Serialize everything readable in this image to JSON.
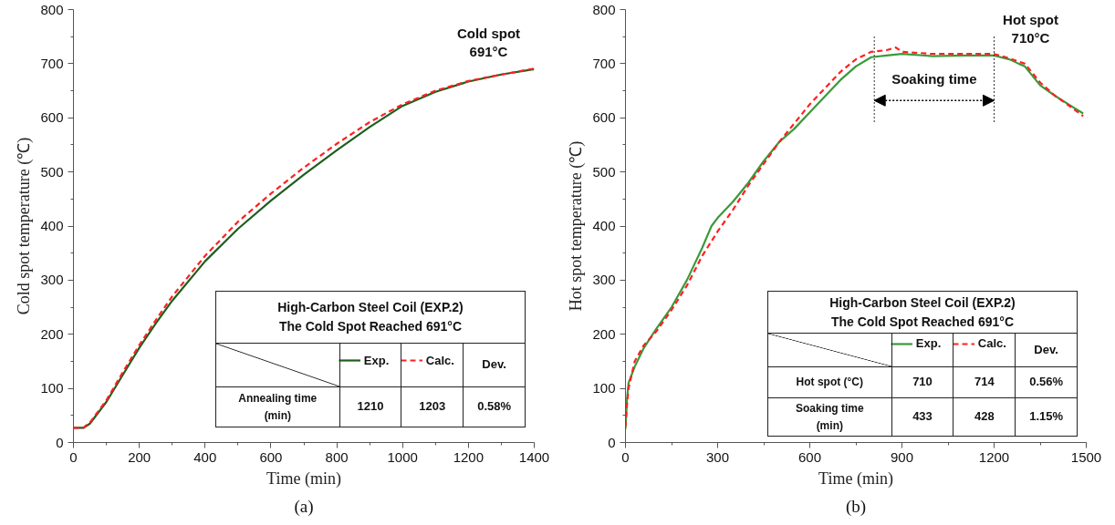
{
  "chart_data": [
    {
      "type": "line",
      "title": "(a)",
      "xlabel": "Time (min)",
      "ylabel": "Cold spot temperature (℃)",
      "xlim": [
        0,
        1400
      ],
      "ylim": [
        0,
        800
      ],
      "xticks": [
        0,
        200,
        400,
        600,
        800,
        1000,
        1200,
        1400
      ],
      "yticks": [
        0,
        100,
        200,
        300,
        400,
        500,
        600,
        700,
        800
      ],
      "grid": false,
      "legend": "bottom right",
      "marker": "none",
      "series": [
        {
          "name": "Exp.",
          "color": "#1e5e1e",
          "line_style": "solid",
          "x": [
            0,
            30,
            50,
            100,
            150,
            200,
            250,
            300,
            400,
            500,
            600,
            700,
            800,
            900,
            1000,
            1100,
            1200,
            1300,
            1400
          ],
          "values": [
            27,
            27,
            35,
            75,
            125,
            175,
            220,
            262,
            335,
            395,
            447,
            495,
            540,
            583,
            622,
            648,
            667,
            680,
            690
          ]
        },
        {
          "name": "Calc.",
          "color": "#ff2020",
          "line_style": "dashed",
          "x": [
            0,
            30,
            50,
            100,
            150,
            200,
            250,
            300,
            400,
            500,
            600,
            700,
            800,
            900,
            1000,
            1100,
            1200,
            1300,
            1400
          ],
          "values": [
            27,
            27,
            37,
            78,
            130,
            180,
            226,
            270,
            345,
            408,
            460,
            508,
            552,
            592,
            625,
            650,
            668,
            680,
            691
          ]
        }
      ],
      "annotations": [
        {
          "text": "Cold spot\n691°C",
          "x": 1400,
          "y": 691
        },
        "High-Carbon Steel Coil (EXP.2)\nThe Cold Spot Reached 691°C",
        "Dev.",
        "Annealing time\n(min)",
        "1210",
        "1203",
        "0.58%"
      ]
    },
    {
      "type": "line",
      "title": "(b)",
      "xlabel": "Time (min)",
      "ylabel": "Hot spot temperature (℃)",
      "xlim": [
        0,
        1500
      ],
      "ylim": [
        0,
        800
      ],
      "xticks": [
        0,
        300,
        600,
        900,
        1200,
        1500
      ],
      "yticks": [
        0,
        100,
        200,
        300,
        400,
        500,
        600,
        700,
        800
      ],
      "grid": false,
      "legend": "bottom right",
      "marker": "none",
      "series": [
        {
          "name": "Exp.",
          "color": "#3a9a3a",
          "line_style": "solid",
          "x": [
            0,
            5,
            10,
            30,
            60,
            100,
            150,
            200,
            250,
            280,
            300,
            350,
            400,
            450,
            500,
            550,
            600,
            650,
            700,
            750,
            800,
            850,
            900,
            1000,
            1100,
            1200,
            1250,
            1280,
            1300,
            1350,
            1400,
            1450,
            1490
          ],
          "values": [
            25,
            80,
            110,
            140,
            175,
            210,
            250,
            300,
            360,
            400,
            415,
            445,
            480,
            520,
            555,
            580,
            610,
            640,
            670,
            695,
            712,
            715,
            718,
            714,
            715,
            715,
            708,
            700,
            695,
            660,
            640,
            622,
            608
          ]
        },
        {
          "name": "Calc.",
          "color": "#ff2020",
          "line_style": "dashed",
          "x": [
            0,
            5,
            10,
            30,
            60,
            100,
            150,
            200,
            250,
            300,
            350,
            400,
            450,
            500,
            550,
            600,
            650,
            700,
            750,
            800,
            850,
            880,
            900,
            1000,
            1100,
            1200,
            1250,
            1300,
            1350,
            1400,
            1450,
            1490
          ],
          "values": [
            30,
            70,
            100,
            150,
            180,
            205,
            245,
            290,
            345,
            390,
            430,
            475,
            515,
            555,
            590,
            625,
            655,
            685,
            708,
            722,
            725,
            730,
            722,
            718,
            718,
            718,
            710,
            700,
            665,
            640,
            620,
            603
          ]
        }
      ],
      "ref_lines": [
        {
          "axis": "x",
          "value": 810,
          "line_style": "dotted",
          "label": "Soaking time"
        },
        {
          "axis": "x",
          "value": 1200,
          "line_style": "dotted"
        }
      ],
      "annotations": [
        {
          "text": "Hot spot\n710°C",
          "x": 1200,
          "y": 716
        },
        "High-Carbon Steel Coil (EXP.2)\nThe Cold Spot Reached 691°C",
        "Dev.",
        "Hot spot (°C)",
        "710",
        "714",
        "0.56%",
        "Soaking time\n(min)",
        "433",
        "428",
        "1.15%"
      ]
    }
  ]
}
